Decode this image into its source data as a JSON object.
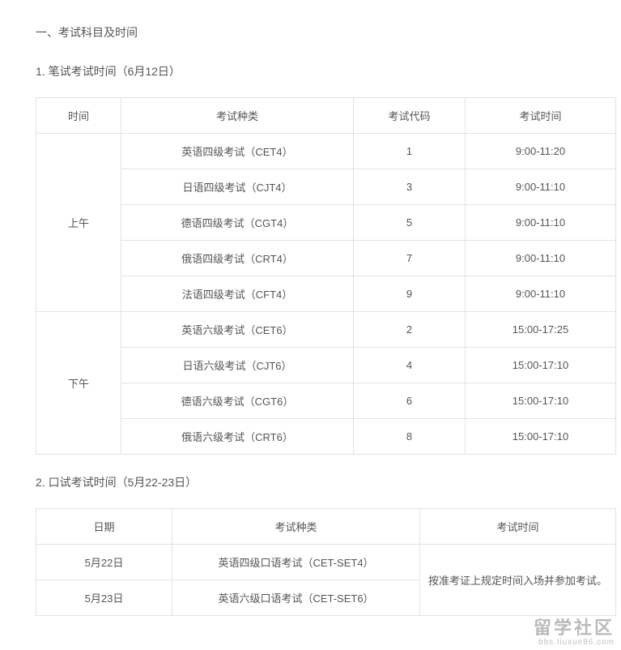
{
  "heading1": "一、考试科目及时间",
  "sub1": "1. 笔试考试时间（6月12日）",
  "sub2": "2. 口试考试时间（5月22-23日）",
  "table1": {
    "colwidths": [
      "105px",
      "287px",
      "138px",
      "186px"
    ],
    "headers": [
      "时间",
      "考试种类",
      "考试代码",
      "考试时间"
    ],
    "groups": [
      {
        "label": "上午",
        "rows": [
          {
            "type": "英语四级考试（CET4）",
            "code": "1",
            "time": "9:00-11:20"
          },
          {
            "type": "日语四级考试（CJT4）",
            "code": "3",
            "time": "9:00-11:10"
          },
          {
            "type": "德语四级考试（CGT4）",
            "code": "5",
            "time": "9:00-11:10"
          },
          {
            "type": "俄语四级考试（CRT4）",
            "code": "7",
            "time": "9:00-11:10"
          },
          {
            "type": "法语四级考试（CFT4）",
            "code": "9",
            "time": "9:00-11:10"
          }
        ]
      },
      {
        "label": "下午",
        "rows": [
          {
            "type": "英语六级考试（CET6）",
            "code": "2",
            "time": "15:00-17:25"
          },
          {
            "type": "日语六级考试（CJT6）",
            "code": "4",
            "time": "15:00-17:10"
          },
          {
            "type": "德语六级考试（CGT6）",
            "code": "6",
            "time": "15:00-17:10"
          },
          {
            "type": "俄语六级考试（CRT6）",
            "code": "8",
            "time": "15:00-17:10"
          }
        ]
      }
    ]
  },
  "table2": {
    "colwidths": [
      "168px",
      "306px",
      "242px"
    ],
    "headers": [
      "日期",
      "考试种类",
      "考试时间"
    ],
    "rows": [
      {
        "date": "5月22日",
        "type": "英语四级口语考试（CET-SET4）"
      },
      {
        "date": "5月23日",
        "type": "英语六级口语考试（CET-SET6）"
      }
    ],
    "merged_time": "按准考证上规定时间入场并参加考试。"
  },
  "watermark": {
    "main": "留学社区",
    "sub": "bbs.liuxue86.com"
  }
}
